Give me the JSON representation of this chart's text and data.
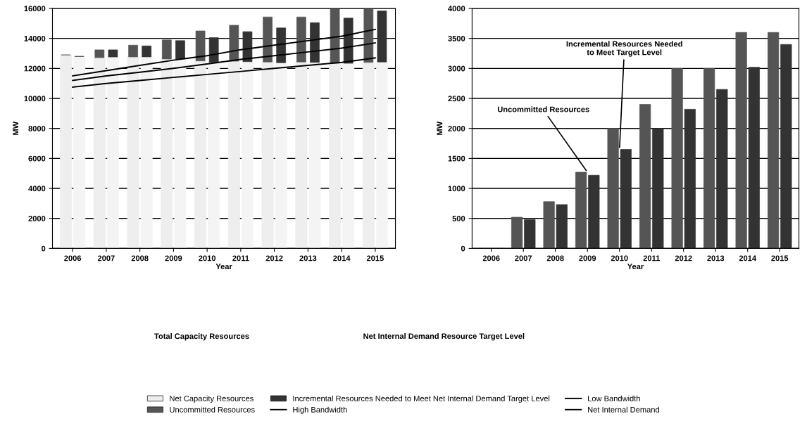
{
  "chart_data": [
    {
      "type": "bar",
      "xlabel": "Year",
      "ylabel": "MW",
      "categories": [
        "2006",
        "2007",
        "2008",
        "2009",
        "2010",
        "2011",
        "2012",
        "2013",
        "2014",
        "2015"
      ],
      "series": [
        {
          "name": "Net Capacity Resources",
          "color": "#eeeeee",
          "values": [
            12900,
            12720,
            12770,
            12630,
            12500,
            12480,
            12430,
            12430,
            12350,
            12400
          ]
        },
        {
          "name": "Uncommitted Resources",
          "color": "#555555",
          "base": [
            12900,
            12720,
            12770,
            12630,
            12500,
            12480,
            12430,
            12430,
            12350,
            12400
          ],
          "values": [
            0,
            520,
            780,
            1270,
            2000,
            2400,
            3000,
            3000,
            3600,
            3600
          ]
        },
        {
          "color": "#f4f4f4",
          "values": [
            12800,
            12760,
            12770,
            12630,
            12400,
            12450,
            12380,
            12400,
            12340,
            12430
          ]
        },
        {
          "name": "Incremental Resources Needed to Meet Net Internal Demand Target Level",
          "color": "#333333",
          "base": [
            12800,
            12760,
            12770,
            12630,
            12400,
            12450,
            12380,
            12400,
            12340,
            12430
          ],
          "values": [
            0,
            480,
            730,
            1220,
            1650,
            2000,
            2320,
            2650,
            3020,
            3400
          ]
        },
        {
          "name": "High Bandwidth",
          "type": "line",
          "color": "#000000",
          "values": [
            11500,
            11850,
            12200,
            12550,
            12850,
            13250,
            13550,
            13850,
            14150,
            14600
          ]
        },
        {
          "name": "Low Bandwidth",
          "type": "line",
          "color": "#000000",
          "values": [
            10750,
            11000,
            11200,
            11400,
            11600,
            11800,
            12000,
            12200,
            12400,
            12700
          ]
        },
        {
          "name": "Net Internal Demand",
          "type": "line",
          "color": "#000000",
          "values": [
            11200,
            11500,
            11750,
            12000,
            12300,
            12600,
            12850,
            13100,
            13350,
            13700
          ]
        }
      ],
      "ylim": [
        0,
        16000
      ],
      "yticks": [
        0,
        2000,
        4000,
        6000,
        8000,
        10000,
        12000,
        14000,
        16000
      ],
      "grid": "y",
      "legend": "bottom",
      "line_style": "solid",
      "marker": "none",
      "annotations": [
        "Total Capacity Resources",
        "Net Internal Demand Resource Target Level"
      ]
    },
    {
      "type": "bar",
      "xlabel": "Year",
      "ylabel": "MW",
      "categories": [
        "2006",
        "2007",
        "2008",
        "2009",
        "2010",
        "2011",
        "2012",
        "2013",
        "2014",
        "2015"
      ],
      "series": [
        {
          "color": "#555555",
          "values": [
            0,
            520,
            780,
            1270,
            2000,
            2400,
            3000,
            3000,
            3600,
            3600
          ]
        },
        {
          "color": "#333333",
          "values": [
            0,
            480,
            730,
            1220,
            1650,
            2000,
            2320,
            2650,
            3020,
            3400
          ]
        }
      ],
      "ylim": [
        0,
        4000
      ],
      "yticks": [
        0,
        500,
        1000,
        1500,
        2000,
        2500,
        3000,
        3500,
        4000
      ],
      "grid": "y",
      "annotations": [
        {
          "text": "Uncommitted Resources",
          "x": "2009",
          "y": 1270
        },
        {
          "text": "Incremental Resources Needed\nto Meet Target Level",
          "x": "2010",
          "y": 1650
        }
      ]
    }
  ]
}
